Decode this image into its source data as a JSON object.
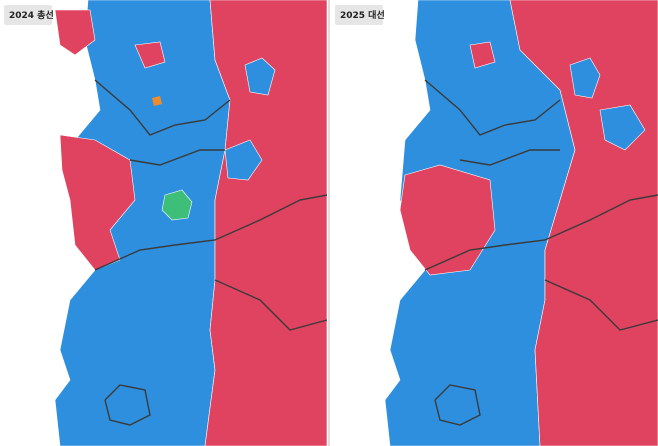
{
  "panels": [
    {
      "title": "2024 총선"
    },
    {
      "title": "2025 대선"
    }
  ]
}
